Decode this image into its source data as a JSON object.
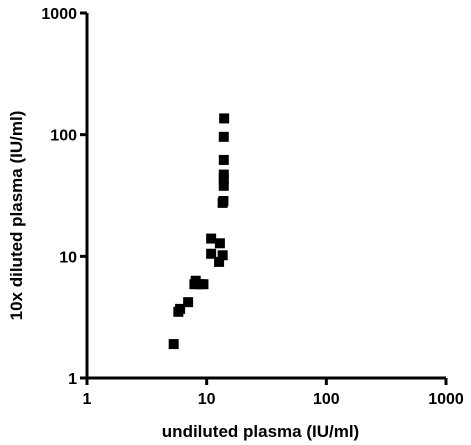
{
  "chart_data": {
    "type": "scatter",
    "title": "",
    "xlabel": "undiluted plasma (IU/ml)",
    "ylabel": "10x diluted plasma (IU/ml)",
    "xscale": "log",
    "yscale": "log",
    "xlim": [
      1,
      1000
    ],
    "ylim": [
      1,
      1000
    ],
    "xticks": [
      1,
      10,
      100,
      1000
    ],
    "yticks": [
      1,
      10,
      100,
      1000
    ],
    "xtick_labels": [
      "1",
      "10",
      "100",
      "1000"
    ],
    "ytick_labels": [
      "1",
      "10",
      "100",
      "1000"
    ],
    "grid": false,
    "legend": "none",
    "marker": "square",
    "marker_color": "#000000",
    "series": [
      {
        "points": [
          {
            "x": 5.3,
            "y": 1.9
          },
          {
            "x": 5.8,
            "y": 3.5
          },
          {
            "x": 6.0,
            "y": 3.7
          },
          {
            "x": 7.0,
            "y": 4.2
          },
          {
            "x": 7.9,
            "y": 5.9
          },
          {
            "x": 8.1,
            "y": 6.3
          },
          {
            "x": 8.8,
            "y": 5.9
          },
          {
            "x": 9.4,
            "y": 5.9
          },
          {
            "x": 10.9,
            "y": 10.5
          },
          {
            "x": 10.9,
            "y": 14.0
          },
          {
            "x": 12.7,
            "y": 9.0
          },
          {
            "x": 12.9,
            "y": 12.8
          },
          {
            "x": 13.6,
            "y": 10.2
          },
          {
            "x": 13.6,
            "y": 27.5
          },
          {
            "x": 13.8,
            "y": 28.5
          },
          {
            "x": 13.9,
            "y": 38.0
          },
          {
            "x": 13.9,
            "y": 43.0
          },
          {
            "x": 13.9,
            "y": 47.0
          },
          {
            "x": 13.9,
            "y": 62.0
          },
          {
            "x": 13.9,
            "y": 96.0
          },
          {
            "x": 14.0,
            "y": 136.0
          }
        ]
      }
    ]
  }
}
